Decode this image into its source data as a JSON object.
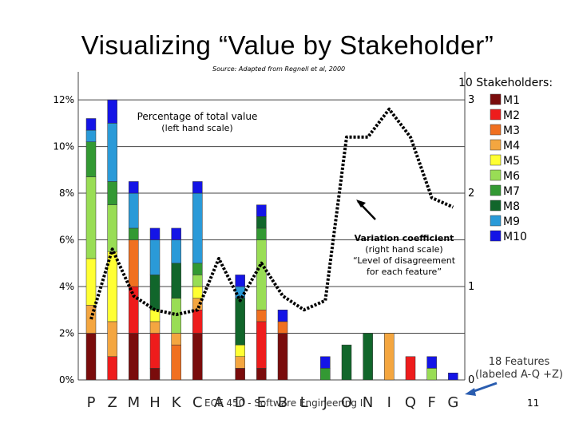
{
  "title": "Visualizing “Value by Stakeholder”",
  "source": "Source: Adapted from Regnell et al, 2000",
  "footer": "ECE 450 - Software Engineering II",
  "page_number": "11",
  "chart_data": {
    "type": "bar",
    "stacked": true,
    "categories": [
      "P",
      "Z",
      "M",
      "H",
      "K",
      "C",
      "A",
      "D",
      "E",
      "B",
      "L",
      "J",
      "O",
      "N",
      "I",
      "Q",
      "F",
      "G"
    ],
    "left_axis": {
      "ticks": [
        "0%",
        "2%",
        "4%",
        "6%",
        "8%",
        "10%",
        "12%"
      ],
      "ylim": [
        0,
        13.2
      ]
    },
    "right_axis": {
      "ticks": [
        "0",
        "1",
        "2",
        "3"
      ],
      "ylim": [
        0,
        3
      ]
    },
    "annotation_left_title": "Percentage of total value",
    "annotation_left_sub": "(left hand scale)",
    "annotation_right_title": "Variation coefficient",
    "annotation_right_lines": [
      "(right hand scale)",
      "“Level of disagreement",
      "for each feature”"
    ],
    "legend_title": "10 Stakeholders:",
    "features_note": [
      "18 Features",
      "(labeled A-Q +Z)"
    ],
    "series": [
      {
        "name": "M1",
        "color": "#7a0c0c",
        "values": [
          2.0,
          0,
          2.0,
          0.5,
          0,
          2.0,
          0,
          0.5,
          0.5,
          2.0,
          0,
          0,
          0,
          0,
          0,
          0,
          0,
          0
        ]
      },
      {
        "name": "M2",
        "color": "#ee1c1c",
        "values": [
          0,
          1.0,
          2.0,
          1.5,
          0,
          1.0,
          0,
          0,
          2.0,
          0,
          0,
          0,
          0,
          0,
          0,
          1.0,
          0,
          0
        ]
      },
      {
        "name": "M3",
        "color": "#f07020",
        "values": [
          0,
          0,
          2.0,
          0,
          1.5,
          0,
          0,
          0,
          0.5,
          0.5,
          0,
          0,
          0,
          0,
          0,
          0,
          0,
          0
        ]
      },
      {
        "name": "M4",
        "color": "#f4a640",
        "values": [
          1.2,
          1.5,
          0,
          0.5,
          0.5,
          0.5,
          0,
          0.5,
          0,
          0,
          0,
          0,
          0,
          0,
          2.0,
          0,
          0,
          0
        ]
      },
      {
        "name": "M5",
        "color": "#ffff33",
        "values": [
          2.0,
          3.0,
          0,
          0.5,
          0,
          0.5,
          0,
          0.5,
          0,
          0,
          0,
          0,
          0,
          0,
          0,
          0,
          0,
          0
        ]
      },
      {
        "name": "M6",
        "color": "#99dd55",
        "values": [
          3.5,
          2.0,
          0,
          0,
          1.5,
          0.5,
          0,
          0,
          3.0,
          0,
          0,
          0,
          0,
          0,
          0,
          0,
          0.5,
          0
        ]
      },
      {
        "name": "M7",
        "color": "#339933",
        "values": [
          1.5,
          1.0,
          0.5,
          0,
          0,
          0.5,
          0,
          0,
          0.5,
          0,
          0,
          0.5,
          0,
          0,
          0,
          0,
          0,
          0
        ]
      },
      {
        "name": "M8",
        "color": "#11662b",
        "values": [
          0,
          0,
          0,
          1.5,
          1.5,
          0,
          0,
          2.0,
          0.5,
          0,
          0,
          0,
          1.5,
          2.0,
          0,
          0,
          0,
          0
        ]
      },
      {
        "name": "M9",
        "color": "#2a9ad8",
        "values": [
          0.5,
          2.5,
          1.5,
          1.5,
          1.0,
          3.0,
          0,
          0.5,
          0,
          0,
          0,
          0,
          0,
          0,
          0,
          0,
          0,
          0
        ]
      },
      {
        "name": "M10",
        "color": "#1414e6",
        "values": [
          0.5,
          1.0,
          0.5,
          0.5,
          0.5,
          0.5,
          0,
          0.5,
          0.5,
          0.5,
          0,
          0.5,
          0,
          0,
          0,
          0,
          0.5,
          0.3
        ]
      }
    ],
    "variation_coefficient": [
      0.65,
      1.4,
      0.9,
      0.75,
      0.7,
      0.75,
      1.3,
      0.85,
      1.25,
      0.9,
      0.75,
      0.85,
      2.6,
      2.6,
      2.9,
      2.6,
      1.95,
      1.85
    ]
  }
}
